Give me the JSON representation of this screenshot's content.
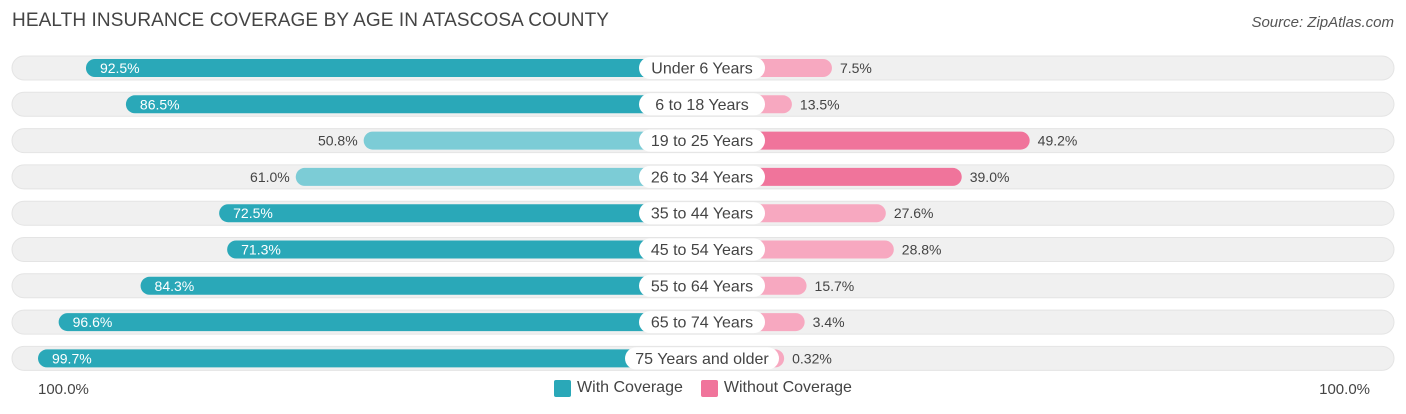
{
  "header": {
    "title": "HEALTH INSURANCE COVERAGE BY AGE IN ATASCOSA COUNTY",
    "source": "Source: ZipAtlas.com"
  },
  "colors": {
    "with_strong": "#2aa8b8",
    "with_light": "#7cccd6",
    "without_strong": "#f0749b",
    "without_light": "#f7a8c0",
    "track": "#f0f0f0"
  },
  "chart_data": {
    "type": "bar",
    "orientation": "horizontal-diverging",
    "title": "HEALTH INSURANCE COVERAGE BY AGE IN ATASCOSA COUNTY",
    "categories": [
      "Under 6 Years",
      "6 to 18 Years",
      "19 to 25 Years",
      "26 to 34 Years",
      "35 to 44 Years",
      "45 to 54 Years",
      "55 to 64 Years",
      "65 to 74 Years",
      "75 Years and older"
    ],
    "series": [
      {
        "name": "With Coverage",
        "values": [
          92.5,
          86.5,
          50.8,
          61.0,
          72.5,
          71.3,
          84.3,
          96.6,
          99.7
        ],
        "labels": [
          "92.5%",
          "86.5%",
          "50.8%",
          "61.0%",
          "72.5%",
          "71.3%",
          "84.3%",
          "96.6%",
          "99.7%"
        ]
      },
      {
        "name": "Without Coverage",
        "values": [
          7.5,
          13.5,
          49.2,
          39.0,
          27.6,
          28.8,
          15.7,
          3.4,
          0.32
        ],
        "labels": [
          "7.5%",
          "13.5%",
          "49.2%",
          "39.0%",
          "27.6%",
          "28.8%",
          "15.7%",
          "3.4%",
          "0.32%"
        ]
      }
    ],
    "xlim": [
      0,
      100
    ],
    "axis_left_label": "100.0%",
    "axis_right_label": "100.0%",
    "legend": [
      "With Coverage",
      "Without Coverage"
    ],
    "legend_position": "bottom-center"
  }
}
